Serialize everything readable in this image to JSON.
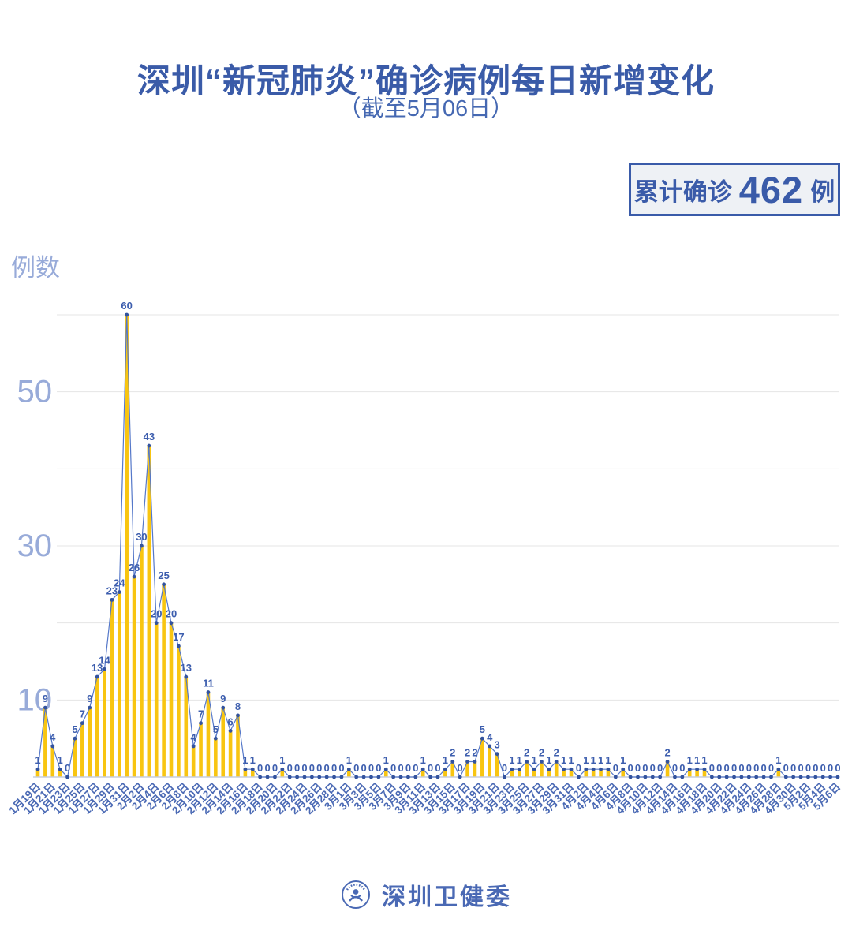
{
  "header": {
    "title": "深圳“新冠肺炎”确诊病例每日新增变化",
    "subtitle": "（截至5月06日）"
  },
  "summary_badge": {
    "prefix": "累计确诊",
    "value": "462",
    "suffix": "例"
  },
  "footer": {
    "logo_text": "深圳卫健委",
    "logo_icon": "person-in-circle-emblem"
  },
  "colors": {
    "title_blue": "#3A5BA8",
    "bar_yellow": "#F8C511",
    "line_blue": "#5578C9",
    "marker_blue": "#33539E",
    "value_label_blue": "#3D5EAE",
    "x_label_blue": "#4A69B4",
    "y_label_periwinkle": "#98ABD9",
    "grid_gray": "#E4E4E4",
    "axis_gray": "#C7CEDD",
    "badge_bg": "#EEF1F5"
  },
  "chart_data": {
    "type": "bar",
    "title": "深圳“新冠肺炎”确诊病例每日新增变化",
    "xlabel": "",
    "ylabel": "例数",
    "ylim": [
      0,
      62
    ],
    "grid_values": [
      10,
      20,
      30,
      40,
      50,
      60
    ],
    "y_ticks_shown": [
      10,
      30,
      50
    ],
    "legend": "none",
    "note": "每个数据点均带数值标签；横轴每2天一个刻度，数据为逐日序列（2020年1月19日至5月6日，共109天），累计462例",
    "x_tick_every": 2,
    "x_tick_labels": [
      "1月19日",
      "1月21日",
      "1月23日",
      "1月25日",
      "1月27日",
      "1月29日",
      "1月31日",
      "2月2日",
      "2月4日",
      "2月6日",
      "2月8日",
      "2月10日",
      "2月12日",
      "2月14日",
      "2月16日",
      "2月18日",
      "2月20日",
      "2月22日",
      "2月24日",
      "2月26日",
      "2月28日",
      "3月1日",
      "3月3日",
      "3月5日",
      "3月7日",
      "3月9日",
      "3月11日",
      "3月13日",
      "3月15日",
      "3月17日",
      "3月19日",
      "3月21日",
      "3月23日",
      "3月25日",
      "3月27日",
      "3月29日",
      "3月31日",
      "4月2日",
      "4月4日",
      "4月6日",
      "4月8日",
      "4月10日",
      "4月12日",
      "4月14日",
      "4月16日",
      "4月18日",
      "4月20日",
      "4月22日",
      "4月24日",
      "4月26日",
      "4月28日",
      "4月30日",
      "5月2日",
      "5月4日",
      "5月6日"
    ],
    "values": [
      1,
      9,
      4,
      1,
      0,
      5,
      7,
      9,
      13,
      14,
      23,
      24,
      60,
      26,
      30,
      43,
      20,
      25,
      20,
      17,
      13,
      4,
      7,
      11,
      5,
      9,
      6,
      8,
      1,
      1,
      0,
      0,
      0,
      1,
      0,
      0,
      0,
      0,
      0,
      0,
      0,
      0,
      1,
      0,
      0,
      0,
      0,
      1,
      0,
      0,
      0,
      0,
      1,
      0,
      0,
      1,
      2,
      0,
      2,
      2,
      5,
      4,
      3,
      0,
      1,
      1,
      2,
      1,
      2,
      1,
      2,
      1,
      1,
      0,
      1,
      1,
      1,
      1,
      0,
      1,
      0,
      0,
      0,
      0,
      0,
      2,
      0,
      0,
      1,
      1,
      1,
      0,
      0,
      0,
      0,
      0,
      0,
      0,
      0,
      0,
      1,
      0,
      0,
      0,
      0,
      0,
      0,
      0,
      0
    ],
    "cumulative_total": 462
  }
}
